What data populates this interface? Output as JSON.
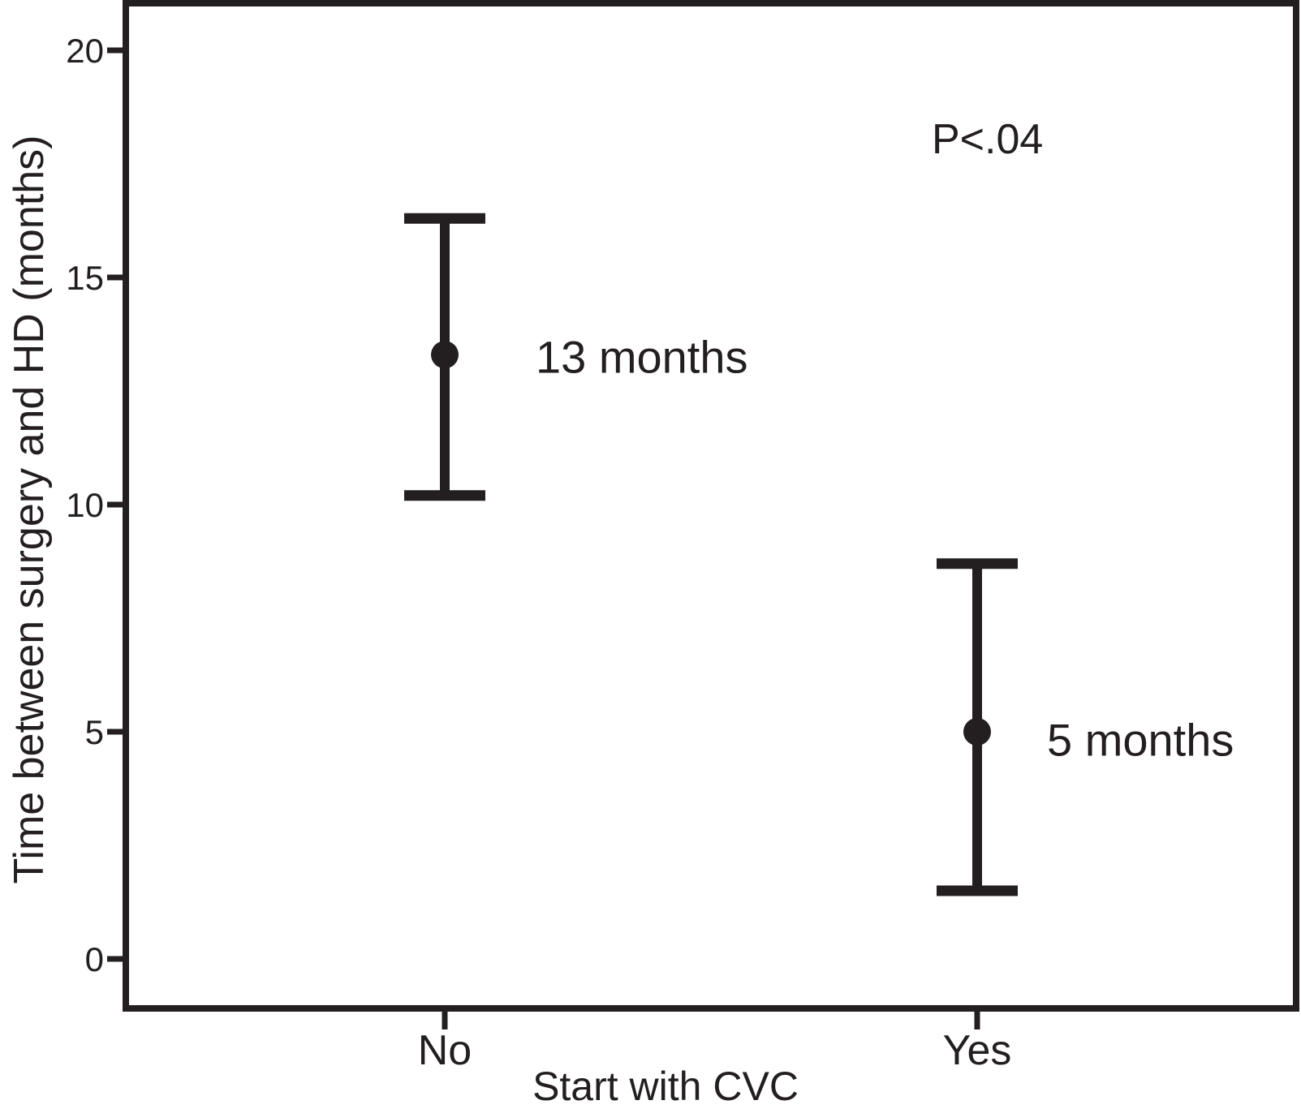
{
  "chart_data": {
    "type": "scatter",
    "subtype": "means-with-error-bars",
    "title": "",
    "xlabel": "Start with CVC",
    "ylabel": "Time between surgery and HD (months)",
    "categories": [
      "No",
      "Yes"
    ],
    "yticks": [
      0,
      5,
      10,
      15,
      20
    ],
    "ylim": [
      -1.1,
      21.0
    ],
    "grid": false,
    "legend": "none",
    "series": [
      {
        "category": "No",
        "mean": 13.3,
        "ci_low": 10.2,
        "ci_high": 16.3,
        "point_label": "13 months"
      },
      {
        "category": "Yes",
        "mean": 5.0,
        "ci_low": 1.5,
        "ci_high": 8.7,
        "point_label": "5 months"
      }
    ],
    "annotations": [
      {
        "text": "P<.04",
        "near": "Yes",
        "y_value": 18.0
      }
    ],
    "colors": {
      "ink": "#231f20",
      "background": "#ffffff"
    }
  }
}
